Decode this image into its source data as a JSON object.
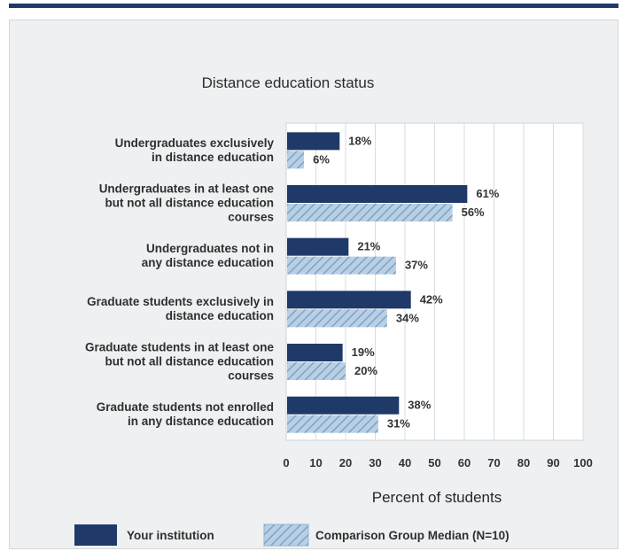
{
  "chart_data": {
    "type": "bar",
    "orientation": "horizontal",
    "title": "Distance education status",
    "xlabel": "Percent of students",
    "ylabel": "",
    "xlim": [
      0,
      100
    ],
    "xticks": [
      "0",
      "10",
      "20",
      "30",
      "40",
      "50",
      "60",
      "70",
      "80",
      "90",
      "100"
    ],
    "grid": true,
    "legend_position": "bottom",
    "categories": [
      [
        "Undergraduates exclusively",
        "in distance education"
      ],
      [
        "Undergraduates in at least one",
        "but not all distance education",
        "courses"
      ],
      [
        "Undergraduates not in",
        "any distance education"
      ],
      [
        "Graduate students exclusively in",
        "distance education"
      ],
      [
        "Graduate students in at least one",
        "but not all distance education",
        "courses"
      ],
      [
        "Graduate students not enrolled",
        "in any distance education"
      ]
    ],
    "series": [
      {
        "name": "Your institution",
        "color": "#1f3a68",
        "fill": "solid",
        "values": [
          18,
          61,
          21,
          42,
          19,
          38
        ],
        "labels": [
          "18%",
          "61%",
          "21%",
          "42%",
          "19%",
          "38%"
        ]
      },
      {
        "name": "Comparison Group Median (N=10)",
        "color": "#8fb3d4",
        "fill": "hatched",
        "values": [
          6,
          56,
          37,
          34,
          20,
          31
        ],
        "labels": [
          "6%",
          "56%",
          "37%",
          "34%",
          "20%",
          "31%"
        ]
      }
    ]
  }
}
